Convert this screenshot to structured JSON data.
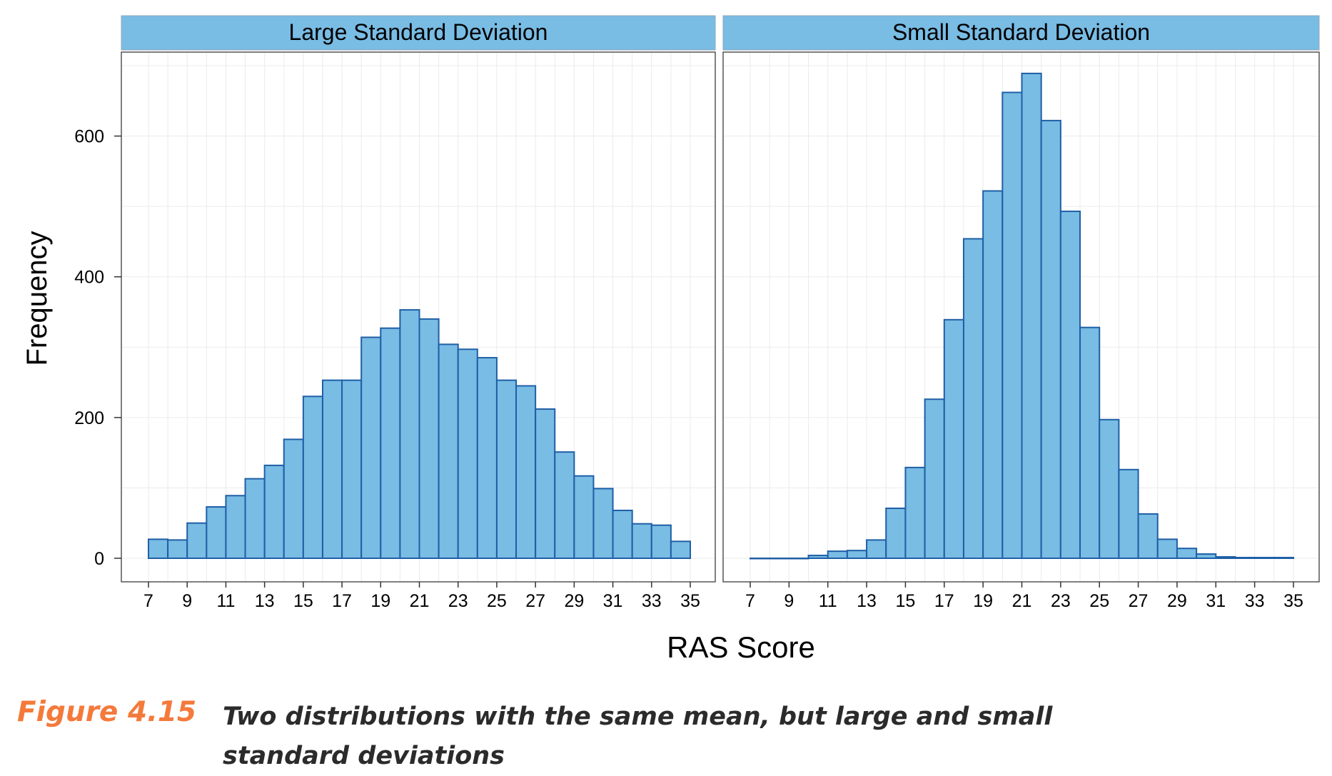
{
  "chart_data": {
    "type": "bar",
    "xlabel": "RAS Score",
    "ylabel": "Frequency",
    "x": [
      7,
      8,
      9,
      10,
      11,
      12,
      13,
      14,
      15,
      16,
      17,
      18,
      19,
      20,
      21,
      22,
      23,
      24,
      25,
      26,
      27,
      28,
      29,
      30,
      31,
      32,
      33,
      34
    ],
    "x_ticks": [
      7,
      9,
      11,
      13,
      15,
      17,
      19,
      21,
      23,
      25,
      27,
      29,
      31,
      33,
      35
    ],
    "y_ticks": [
      0,
      200,
      400,
      600
    ],
    "xlim": [
      7,
      35
    ],
    "ylim": [
      0,
      700
    ],
    "grid": true,
    "panels": [
      {
        "title": "Large Standard Deviation",
        "values": [
          27,
          26,
          50,
          73,
          89,
          113,
          132,
          169,
          230,
          253,
          253,
          314,
          327,
          353,
          340,
          304,
          297,
          285,
          253,
          245,
          212,
          151,
          117,
          99,
          68,
          49,
          47,
          24
        ]
      },
      {
        "title": "Small Standard Deviation",
        "values": [
          0,
          0,
          0,
          4,
          10,
          11,
          26,
          71,
          129,
          226,
          339,
          454,
          522,
          662,
          689,
          622,
          493,
          328,
          197,
          126,
          63,
          27,
          14,
          6,
          2,
          1,
          1,
          1
        ]
      }
    ],
    "colors": {
      "bar_fill": "#79bce4",
      "bar_stroke": "#1f5fa6",
      "strip": "#79bce4"
    }
  },
  "caption": {
    "label": "Figure 4.15",
    "text": "Two distributions with the same mean, but large and small standard deviations"
  }
}
